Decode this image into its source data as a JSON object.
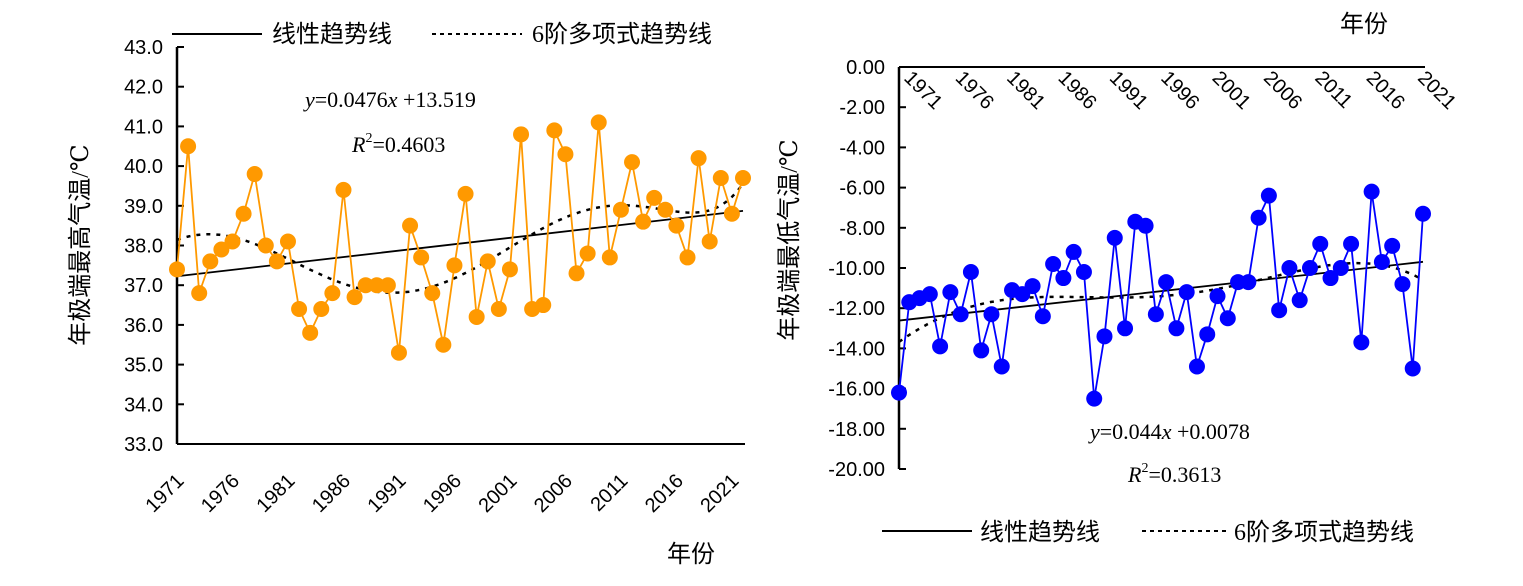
{
  "chart_data": [
    {
      "type": "line",
      "xlabel": "年份",
      "ylabel": "年极端最高气温/℃",
      "ylim": [
        33.0,
        43.0
      ],
      "yticks": [
        "33.0",
        "34.0",
        "35.0",
        "36.0",
        "37.0",
        "38.0",
        "39.0",
        "40.0",
        "41.0",
        "42.0",
        "43.0"
      ],
      "xticks": [
        "1971",
        "1976",
        "1981",
        "1986",
        "1991",
        "1996",
        "2001",
        "2006",
        "2011",
        "2016",
        "2021"
      ],
      "x": [
        1971,
        1972,
        1973,
        1974,
        1975,
        1976,
        1977,
        1978,
        1979,
        1980,
        1981,
        1982,
        1983,
        1984,
        1985,
        1986,
        1987,
        1988,
        1989,
        1990,
        1991,
        1992,
        1993,
        1994,
        1995,
        1996,
        1997,
        1998,
        1999,
        2000,
        2001,
        2002,
        2003,
        2004,
        2005,
        2006,
        2007,
        2008,
        2009,
        2010,
        2011,
        2012,
        2013,
        2014,
        2015,
        2016,
        2017,
        2018,
        2019,
        2020,
        2021,
        2022
      ],
      "values": [
        37.4,
        40.5,
        36.8,
        37.6,
        37.9,
        38.1,
        38.8,
        39.8,
        38.0,
        37.6,
        38.1,
        36.4,
        35.8,
        36.4,
        36.8,
        39.4,
        36.7,
        37.0,
        37.0,
        37.0,
        35.3,
        38.5,
        37.7,
        36.8,
        35.5,
        37.5,
        39.3,
        36.2,
        37.6,
        36.4,
        37.4,
        40.8,
        36.4,
        36.5,
        40.9,
        40.3,
        37.3,
        37.8,
        41.1,
        37.7,
        38.9,
        40.1,
        38.6,
        39.2,
        38.9,
        38.5,
        37.7,
        40.2,
        38.1,
        39.7,
        38.8,
        39.7
      ],
      "color": "#FF9900",
      "legend": {
        "linear": "线性趋势线",
        "poly": "6阶多项式趋势线",
        "placement": "top"
      },
      "equation": {
        "y": "y",
        "rest": "=0.0476",
        "x": "x",
        "tail": " +13.519"
      },
      "r2": {
        "R": "R",
        "sup": "2",
        "val": "=0.4603"
      }
    },
    {
      "type": "line",
      "xlabel": "年份",
      "ylabel": "年极端最低气温/℃",
      "ylim": [
        -20.0,
        0.0
      ],
      "yticks": [
        "-20.00",
        "-18.00",
        "-16.00",
        "-14.00",
        "-12.00",
        "-10.00",
        "-8.00",
        "-6.00",
        "-4.00",
        "-2.00",
        "0.00"
      ],
      "xticks": [
        "1971",
        "1976",
        "1981",
        "1986",
        "1991",
        "1996",
        "2001",
        "2006",
        "2011",
        "2016",
        "2021"
      ],
      "x": [
        1971,
        1972,
        1973,
        1974,
        1975,
        1976,
        1977,
        1978,
        1979,
        1980,
        1981,
        1982,
        1983,
        1984,
        1985,
        1986,
        1987,
        1988,
        1989,
        1990,
        1991,
        1992,
        1993,
        1994,
        1995,
        1996,
        1997,
        1998,
        1999,
        2000,
        2001,
        2002,
        2003,
        2004,
        2005,
        2006,
        2007,
        2008,
        2009,
        2010,
        2011,
        2012,
        2013,
        2014,
        2015,
        2016,
        2017,
        2018,
        2019,
        2020,
        2021,
        2022
      ],
      "values": [
        -16.2,
        -11.7,
        -11.5,
        -11.3,
        -13.9,
        -11.2,
        -12.3,
        -10.2,
        -14.1,
        -12.3,
        -14.9,
        -11.1,
        -11.3,
        -10.9,
        -12.4,
        -9.8,
        -10.5,
        -9.2,
        -10.2,
        -16.5,
        -13.4,
        -8.5,
        -13.0,
        -7.7,
        -7.9,
        -12.3,
        -10.7,
        -13.0,
        -11.2,
        -14.9,
        -13.3,
        -11.4,
        -12.5,
        -10.7,
        -10.7,
        -7.5,
        -6.4,
        -12.1,
        -10.0,
        -11.6,
        -10.0,
        -8.8,
        -10.5,
        -10.0,
        -8.8,
        -13.7,
        -6.2,
        -9.7,
        -8.9,
        -10.8,
        -15.0,
        -7.3
      ],
      "color": "#0000FF",
      "legend": {
        "linear": "线性趋势线",
        "poly": "6阶多项式趋势线",
        "placement": "bottom"
      },
      "equation": {
        "y": "y",
        "rest": "=0.044",
        "x": "x",
        "tail": " +0.0078"
      },
      "r2": {
        "R": "R",
        "sup": "2",
        "val": "=0.3613"
      }
    }
  ]
}
